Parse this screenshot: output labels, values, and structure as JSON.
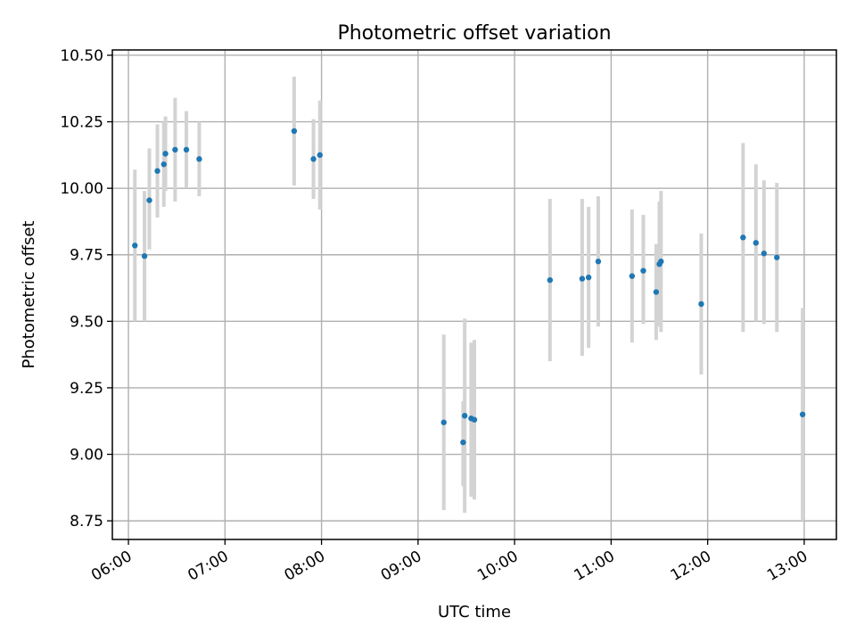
{
  "chart_data": {
    "type": "scatter",
    "title": "Photometric offset variation",
    "xlabel": "UTC time",
    "ylabel": "Photometric offset",
    "xlim": [
      "05:50",
      "13:20"
    ],
    "ylim": [
      8.68,
      10.52
    ],
    "grid": true,
    "legend": "none",
    "x_ticks": [
      "06:00",
      "07:00",
      "08:00",
      "09:00",
      "10:00",
      "11:00",
      "12:00",
      "13:00"
    ],
    "y_ticks": [
      "8.75",
      "9.00",
      "9.25",
      "9.50",
      "9.75",
      "10.00",
      "10.25",
      "10.50"
    ],
    "colors": {
      "points": "#1f77b4",
      "error_bars": "#d3d3d3",
      "grid": "#b0b0b0"
    },
    "points": [
      {
        "time": "06:04",
        "y": 9.785,
        "y_low": 9.5,
        "y_high": 10.07
      },
      {
        "time": "06:10",
        "y": 9.745,
        "y_low": 9.5,
        "y_high": 9.99
      },
      {
        "time": "06:13",
        "y": 9.955,
        "y_low": 9.77,
        "y_high": 10.15
      },
      {
        "time": "06:18",
        "y": 10.065,
        "y_low": 9.89,
        "y_high": 10.24
      },
      {
        "time": "06:22",
        "y": 10.09,
        "y_low": 9.93,
        "y_high": 10.25
      },
      {
        "time": "06:23",
        "y": 10.13,
        "y_low": 9.99,
        "y_high": 10.27
      },
      {
        "time": "06:29",
        "y": 10.145,
        "y_low": 9.95,
        "y_high": 10.34
      },
      {
        "time": "06:36",
        "y": 10.145,
        "y_low": 10.0,
        "y_high": 10.29
      },
      {
        "time": "06:44",
        "y": 10.11,
        "y_low": 9.97,
        "y_high": 10.25
      },
      {
        "time": "07:43",
        "y": 10.215,
        "y_low": 10.01,
        "y_high": 10.42
      },
      {
        "time": "07:55",
        "y": 10.11,
        "y_low": 9.96,
        "y_high": 10.26
      },
      {
        "time": "07:59",
        "y": 10.125,
        "y_low": 9.92,
        "y_high": 10.33
      },
      {
        "time": "09:16",
        "y": 9.12,
        "y_low": 8.79,
        "y_high": 9.45
      },
      {
        "time": "09:28",
        "y": 9.045,
        "y_low": 8.88,
        "y_high": 9.2
      },
      {
        "time": "09:29",
        "y": 9.145,
        "y_low": 8.78,
        "y_high": 9.51
      },
      {
        "time": "09:33",
        "y": 9.135,
        "y_low": 8.84,
        "y_high": 9.42
      },
      {
        "time": "09:35",
        "y": 9.13,
        "y_low": 8.83,
        "y_high": 9.43
      },
      {
        "time": "10:22",
        "y": 9.655,
        "y_low": 9.35,
        "y_high": 9.96
      },
      {
        "time": "10:42",
        "y": 9.66,
        "y_low": 9.37,
        "y_high": 9.96
      },
      {
        "time": "10:46",
        "y": 9.665,
        "y_low": 9.4,
        "y_high": 9.93
      },
      {
        "time": "10:52",
        "y": 9.725,
        "y_low": 9.48,
        "y_high": 9.97
      },
      {
        "time": "11:13",
        "y": 9.67,
        "y_low": 9.42,
        "y_high": 9.92
      },
      {
        "time": "11:20",
        "y": 9.69,
        "y_low": 9.49,
        "y_high": 9.9
      },
      {
        "time": "11:28",
        "y": 9.61,
        "y_low": 9.43,
        "y_high": 9.79
      },
      {
        "time": "11:30",
        "y": 9.715,
        "y_low": 9.48,
        "y_high": 9.95
      },
      {
        "time": "11:31",
        "y": 9.725,
        "y_low": 9.46,
        "y_high": 9.99
      },
      {
        "time": "11:56",
        "y": 9.565,
        "y_low": 9.3,
        "y_high": 9.83
      },
      {
        "time": "12:22",
        "y": 9.815,
        "y_low": 9.46,
        "y_high": 10.17
      },
      {
        "time": "12:30",
        "y": 9.795,
        "y_low": 9.5,
        "y_high": 10.09
      },
      {
        "time": "12:35",
        "y": 9.755,
        "y_low": 9.49,
        "y_high": 10.03
      },
      {
        "time": "12:43",
        "y": 9.74,
        "y_low": 9.46,
        "y_high": 10.02
      },
      {
        "time": "12:59",
        "y": 9.15,
        "y_low": 8.75,
        "y_high": 9.55
      }
    ]
  }
}
